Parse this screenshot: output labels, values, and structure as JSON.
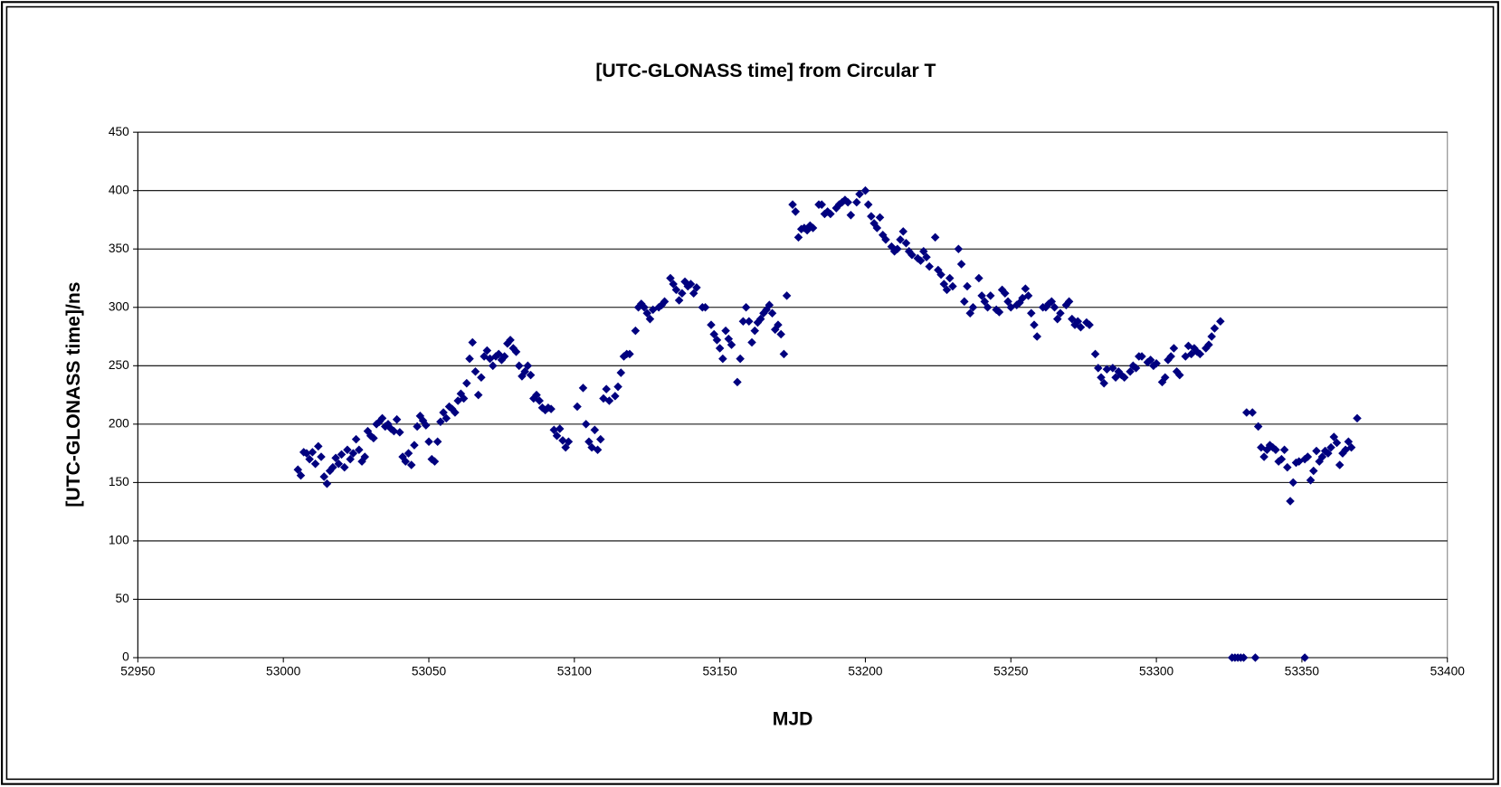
{
  "chart_data": {
    "type": "scatter",
    "title": "[UTC-GLONASS time] from Circular T",
    "x_label": "MJD",
    "y_label": "[UTC-GLONASS time]/ns",
    "color": "#00007f",
    "grid": true,
    "xlim": [
      52950,
      53400
    ],
    "xticks": [
      52950,
      53000,
      53050,
      53100,
      53150,
      53200,
      53250,
      53300,
      53350,
      53400
    ],
    "ylim": [
      0,
      450
    ],
    "yticks": [
      0,
      50,
      100,
      150,
      200,
      250,
      300,
      350,
      400,
      450
    ],
    "x": [
      53005,
      53006,
      53007,
      53008,
      53009,
      53010,
      53011,
      53012,
      53013,
      53014,
      53015,
      53016,
      53017,
      53018,
      53019,
      53020,
      53021,
      53022,
      53023,
      53024,
      53025,
      53026,
      53027,
      53028,
      53029,
      53030,
      53031,
      53032,
      53033,
      53034,
      53035,
      53036,
      53037,
      53038,
      53039,
      53040,
      53041,
      53042,
      53043,
      53044,
      53045,
      53046,
      53047,
      53048,
      53049,
      53050,
      53051,
      53052,
      53053,
      53054,
      53055,
      53056,
      53057,
      53058,
      53059,
      53060,
      53061,
      53062,
      53063,
      53064,
      53065,
      53066,
      53067,
      53068,
      53069,
      53070,
      53071,
      53072,
      53073,
      53074,
      53075,
      53076,
      53077,
      53078,
      53079,
      53080,
      53081,
      53082,
      53083,
      53084,
      53085,
      53086,
      53087,
      53088,
      53089,
      53090,
      53091,
      53092,
      53093,
      53094,
      53095,
      53096,
      53097,
      53098,
      53101,
      53103,
      53104,
      53105,
      53106,
      53107,
      53108,
      53109,
      53110,
      53111,
      53112,
      53114,
      53115,
      53116,
      53117,
      53118,
      53119,
      53121,
      53122,
      53123,
      53124,
      53125,
      53126,
      53127,
      53129,
      53130,
      53131,
      53133,
      53134,
      53135,
      53136,
      53137,
      53138,
      53139,
      53140,
      53141,
      53142,
      53144,
      53145,
      53147,
      53148,
      53149,
      53150,
      53151,
      53152,
      53153,
      53154,
      53156,
      53157,
      53158,
      53159,
      53160,
      53161,
      53162,
      53163,
      53164,
      53165,
      53166,
      53167,
      53168,
      53169,
      53170,
      53171,
      53172,
      53173,
      53175,
      53176,
      53177,
      53178,
      53179,
      53180,
      53181,
      53182,
      53184,
      53185,
      53186,
      53187,
      53188,
      53190,
      53191,
      53192,
      53193,
      53194,
      53195,
      53197,
      53198,
      53200,
      53201,
      53202,
      53203,
      53204,
      53205,
      53206,
      53207,
      53209,
      53210,
      53211,
      53212,
      53213,
      53214,
      53215,
      53216,
      53218,
      53219,
      53220,
      53221,
      53222,
      53224,
      53225,
      53226,
      53227,
      53228,
      53229,
      53230,
      53232,
      53233,
      53234,
      53235,
      53236,
      53237,
      53239,
      53240,
      53241,
      53242,
      53243,
      53245,
      53246,
      53247,
      53248,
      53249,
      53250,
      53252,
      53253,
      53254,
      53255,
      53256,
      53257,
      53258,
      53259,
      53261,
      53262,
      53263,
      53264,
      53265,
      53266,
      53267,
      53269,
      53270,
      53271,
      53272,
      53273,
      53274,
      53276,
      53277,
      53279,
      53280,
      53281,
      53282,
      53283,
      53285,
      53286,
      53287,
      53288,
      53289,
      53291,
      53292,
      53293,
      53294,
      53295,
      53297,
      53298,
      53299,
      53300,
      53302,
      53303,
      53304,
      53305,
      53306,
      53307,
      53308,
      53310,
      53311,
      53312,
      53313,
      53314,
      53315,
      53317,
      53318,
      53319,
      53320,
      53322,
      53326,
      53327,
      53328,
      53329,
      53330,
      53334,
      53351,
      53331,
      53333,
      53335,
      53336,
      53337,
      53338,
      53339,
      53340,
      53341,
      53342,
      53343,
      53344,
      53345,
      53346,
      53347,
      53348,
      53349,
      53351,
      53352,
      53353,
      53354,
      53355,
      53356,
      53357,
      53358,
      53359,
      53360,
      53361,
      53362,
      53363,
      53364,
      53365,
      53366,
      53367,
      53369
    ],
    "values": [
      161,
      156,
      176,
      175,
      170,
      176,
      166,
      181,
      172,
      155,
      149,
      160,
      163,
      171,
      166,
      174,
      163,
      178,
      170,
      175,
      187,
      178,
      168,
      172,
      194,
      190,
      188,
      200,
      202,
      205,
      198,
      200,
      196,
      194,
      204,
      193,
      172,
      168,
      175,
      165,
      182,
      198,
      207,
      203,
      199,
      185,
      170,
      168,
      185,
      202,
      210,
      205,
      215,
      213,
      210,
      220,
      226,
      222,
      235,
      256,
      270,
      245,
      225,
      240,
      258,
      263,
      256,
      250,
      258,
      260,
      255,
      258,
      269,
      272,
      265,
      262,
      250,
      241,
      245,
      250,
      242,
      222,
      225,
      220,
      214,
      212,
      214,
      213,
      195,
      190,
      196,
      186,
      180,
      185,
      215,
      231,
      200,
      185,
      180,
      195,
      178,
      187,
      222,
      230,
      220,
      224,
      232,
      244,
      258,
      260,
      260,
      280,
      300,
      303,
      300,
      295,
      290,
      298,
      300,
      302,
      305,
      325,
      320,
      315,
      306,
      312,
      322,
      318,
      320,
      312,
      317,
      300,
      300,
      285,
      277,
      272,
      265,
      256,
      280,
      273,
      268,
      236,
      256,
      288,
      300,
      288,
      270,
      280,
      287,
      290,
      295,
      298,
      302,
      295,
      281,
      285,
      277,
      260,
      310,
      388,
      382,
      360,
      367,
      368,
      366,
      370,
      368,
      388,
      388,
      380,
      382,
      380,
      385,
      388,
      390,
      392,
      390,
      379,
      390,
      397,
      400,
      388,
      378,
      372,
      368,
      377,
      362,
      358,
      352,
      348,
      350,
      358,
      365,
      355,
      348,
      345,
      342,
      340,
      348,
      343,
      335,
      360,
      332,
      328,
      320,
      315,
      325,
      318,
      350,
      337,
      305,
      318,
      295,
      300,
      325,
      310,
      305,
      300,
      310,
      298,
      296,
      315,
      312,
      305,
      300,
      302,
      304,
      308,
      316,
      310,
      295,
      285,
      275,
      300,
      300,
      303,
      305,
      300,
      290,
      295,
      302,
      305,
      290,
      285,
      288,
      283,
      287,
      285,
      260,
      248,
      240,
      235,
      247,
      248,
      240,
      245,
      242,
      240,
      245,
      250,
      248,
      258,
      258,
      253,
      255,
      250,
      252,
      236,
      240,
      255,
      258,
      265,
      245,
      242,
      258,
      267,
      260,
      265,
      262,
      260,
      265,
      268,
      275,
      282,
      288,
      0,
      0,
      0,
      0,
      0,
      0,
      0,
      210,
      210,
      198,
      180,
      172,
      178,
      182,
      180,
      178,
      168,
      170,
      178,
      163,
      134,
      150,
      167,
      168,
      170,
      172,
      152,
      160,
      177,
      168,
      172,
      177,
      175,
      180,
      189,
      184,
      165,
      175,
      178,
      185,
      180,
      205
    ]
  }
}
